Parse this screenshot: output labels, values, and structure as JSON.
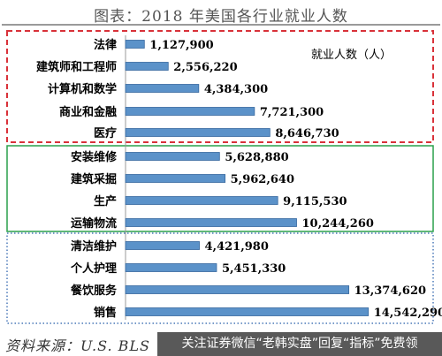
{
  "title": "图表：2018 年美国各行业就业人数",
  "legend_text": "就业人数（人）",
  "source": "资料来源：U.S. BLS",
  "watermark": "关注证券微信“老韩实盘”回复“指标”免费领",
  "colors": {
    "bar_fill": "#5b92c9",
    "bar_edge": "#36689f",
    "group1_border": "#d9323a",
    "group2_border": "#2aa14b",
    "group3_border": "#4a79b8"
  },
  "chart_data": {
    "type": "bar",
    "orientation": "horizontal",
    "title": "图表：2018 年美国各行业就业人数",
    "legend": "就业人数（人）",
    "xlim": [
      0,
      18000000
    ],
    "grid": false,
    "data_labels": [
      "1,127,900",
      "2,556,220",
      "4,384,300",
      "7,721,300",
      "8,646,730",
      "5,628,880",
      "5,962,640",
      "9,115,530",
      "10,244,260",
      "4,421,980",
      "5,451,330",
      "13,374,620",
      "14,542,290"
    ],
    "categories": [
      "法律",
      "建筑师和工程师",
      "计算机和数学",
      "商业和金融",
      "医疗",
      "安装维修",
      "建筑采掘",
      "生产",
      "运输物流",
      "清洁维护",
      "个人护理",
      "餐饮服务",
      "销售"
    ],
    "values": [
      1127900,
      2556220,
      4384300,
      7721300,
      8646730,
      5628880,
      5962640,
      9115530,
      10244260,
      4421980,
      5451330,
      13374620,
      14542290
    ],
    "groups": [
      {
        "items": [
          0,
          1,
          2,
          3,
          4
        ],
        "border": "dashed",
        "color": "#d9323a"
      },
      {
        "items": [
          5,
          6,
          7,
          8
        ],
        "border": "solid",
        "color": "#2aa14b"
      },
      {
        "items": [
          9,
          10,
          11,
          12
        ],
        "border": "dotted",
        "color": "#4a79b8"
      }
    ]
  }
}
